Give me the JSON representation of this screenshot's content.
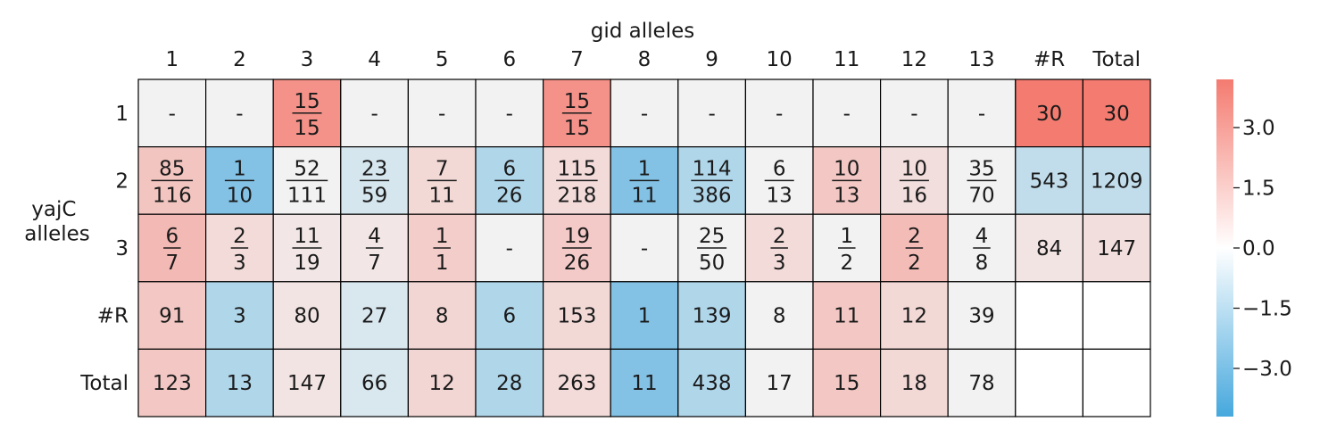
{
  "chart_data": {
    "type": "heatmap",
    "xlabel": "gid alleles",
    "ylabel": "yajC alleles",
    "x_categories": [
      "1",
      "2",
      "3",
      "4",
      "5",
      "6",
      "7",
      "8",
      "9",
      "10",
      "11",
      "12",
      "13",
      "#R",
      "Total"
    ],
    "y_categories": [
      "1",
      "2",
      "3",
      "#R",
      "Total"
    ],
    "cells": [
      [
        {
          "label": "-",
          "value": 0.0
        },
        {
          "label": "-",
          "value": 0.0
        },
        {
          "num": "15",
          "den": "15",
          "value": 3.4
        },
        {
          "label": "-",
          "value": 0.0
        },
        {
          "label": "-",
          "value": 0.0
        },
        {
          "label": "-",
          "value": 0.0
        },
        {
          "num": "15",
          "den": "15",
          "value": 3.4
        },
        {
          "label": "-",
          "value": 0.0
        },
        {
          "label": "-",
          "value": 0.0
        },
        {
          "label": "-",
          "value": 0.0
        },
        {
          "label": "-",
          "value": 0.0
        },
        {
          "label": "-",
          "value": 0.0
        },
        {
          "label": "-",
          "value": 0.0
        },
        {
          "label": "30",
          "value": 4.2
        },
        {
          "label": "30",
          "value": 4.2
        }
      ],
      [
        {
          "num": "85",
          "den": "116",
          "value": 1.6
        },
        {
          "num": "1",
          "den": "10",
          "value": -2.7
        },
        {
          "num": "52",
          "den": "111",
          "value": 0.0
        },
        {
          "num": "23",
          "den": "59",
          "value": -0.7
        },
        {
          "num": "7",
          "den": "11",
          "value": 0.9
        },
        {
          "num": "6",
          "den": "26",
          "value": -1.6
        },
        {
          "num": "115",
          "den": "218",
          "value": 0.8
        },
        {
          "num": "1",
          "den": "11",
          "value": -2.7
        },
        {
          "num": "114",
          "den": "386",
          "value": -1.6
        },
        {
          "num": "6",
          "den": "13",
          "value": 0.0
        },
        {
          "num": "10",
          "den": "13",
          "value": 1.5
        },
        {
          "num": "10",
          "den": "16",
          "value": 0.7
        },
        {
          "num": "35",
          "den": "70",
          "value": 0.0
        },
        {
          "label": "543",
          "value": -1.2
        },
        {
          "label": "1209",
          "value": -1.2
        }
      ],
      [
        {
          "num": "6",
          "den": "7",
          "value": 2.0
        },
        {
          "num": "2",
          "den": "3",
          "value": 0.8
        },
        {
          "num": "11",
          "den": "19",
          "value": 0.4
        },
        {
          "num": "4",
          "den": "7",
          "value": 0.4
        },
        {
          "num": "1",
          "den": "1",
          "value": 1.3
        },
        {
          "label": "-",
          "value": 0.0
        },
        {
          "num": "19",
          "den": "26",
          "value": 1.4
        },
        {
          "label": "-",
          "value": 0.0
        },
        {
          "num": "25",
          "den": "50",
          "value": 0.0
        },
        {
          "num": "2",
          "den": "3",
          "value": 0.8
        },
        {
          "num": "1",
          "den": "2",
          "value": 0.0
        },
        {
          "num": "2",
          "den": "2",
          "value": 1.9
        },
        {
          "num": "4",
          "den": "8",
          "value": 0.0
        },
        {
          "label": "84",
          "value": 0.5
        },
        {
          "label": "147",
          "value": 0.7
        }
      ],
      [
        {
          "label": "91",
          "value": 1.5
        },
        {
          "label": "3",
          "value": -1.6
        },
        {
          "label": "80",
          "value": 0.5
        },
        {
          "label": "27",
          "value": -0.6
        },
        {
          "label": "8",
          "value": 1.0
        },
        {
          "label": "6",
          "value": -1.6
        },
        {
          "label": "153",
          "value": 0.9
        },
        {
          "label": "1",
          "value": -2.7
        },
        {
          "label": "139",
          "value": -1.6
        },
        {
          "label": "8",
          "value": 0.0
        },
        {
          "label": "11",
          "value": 1.5
        },
        {
          "label": "12",
          "value": 0.9
        },
        {
          "label": "39",
          "value": 0.0
        },
        {
          "label": "",
          "value": null
        },
        {
          "label": "",
          "value": null
        }
      ],
      [
        {
          "label": "123",
          "value": 1.5
        },
        {
          "label": "13",
          "value": -1.6
        },
        {
          "label": "147",
          "value": 0.5
        },
        {
          "label": "66",
          "value": -0.6
        },
        {
          "label": "12",
          "value": 1.0
        },
        {
          "label": "28",
          "value": -1.6
        },
        {
          "label": "263",
          "value": 0.8
        },
        {
          "label": "11",
          "value": -2.7
        },
        {
          "label": "438",
          "value": -1.6
        },
        {
          "label": "17",
          "value": 0.0
        },
        {
          "label": "15",
          "value": 1.5
        },
        {
          "label": "18",
          "value": 0.9
        },
        {
          "label": "78",
          "value": 0.0
        },
        {
          "label": "",
          "value": null
        },
        {
          "label": "",
          "value": null
        }
      ]
    ],
    "colorbar": {
      "ticks": [
        3.0,
        1.5,
        0.0,
        -1.5,
        -3.0
      ],
      "tick_labels": [
        "3.0",
        "1.5",
        "0.0",
        "−1.5",
        "−3.0"
      ],
      "range": [
        -4.2,
        4.2
      ],
      "colors": {
        "negative": "#46a8dd",
        "neutral": "#f2f2f2",
        "positive": "#f47b70"
      }
    },
    "neutral_cell_color": "#f2f2f2",
    "empty_cell_color": "#ffffff"
  }
}
